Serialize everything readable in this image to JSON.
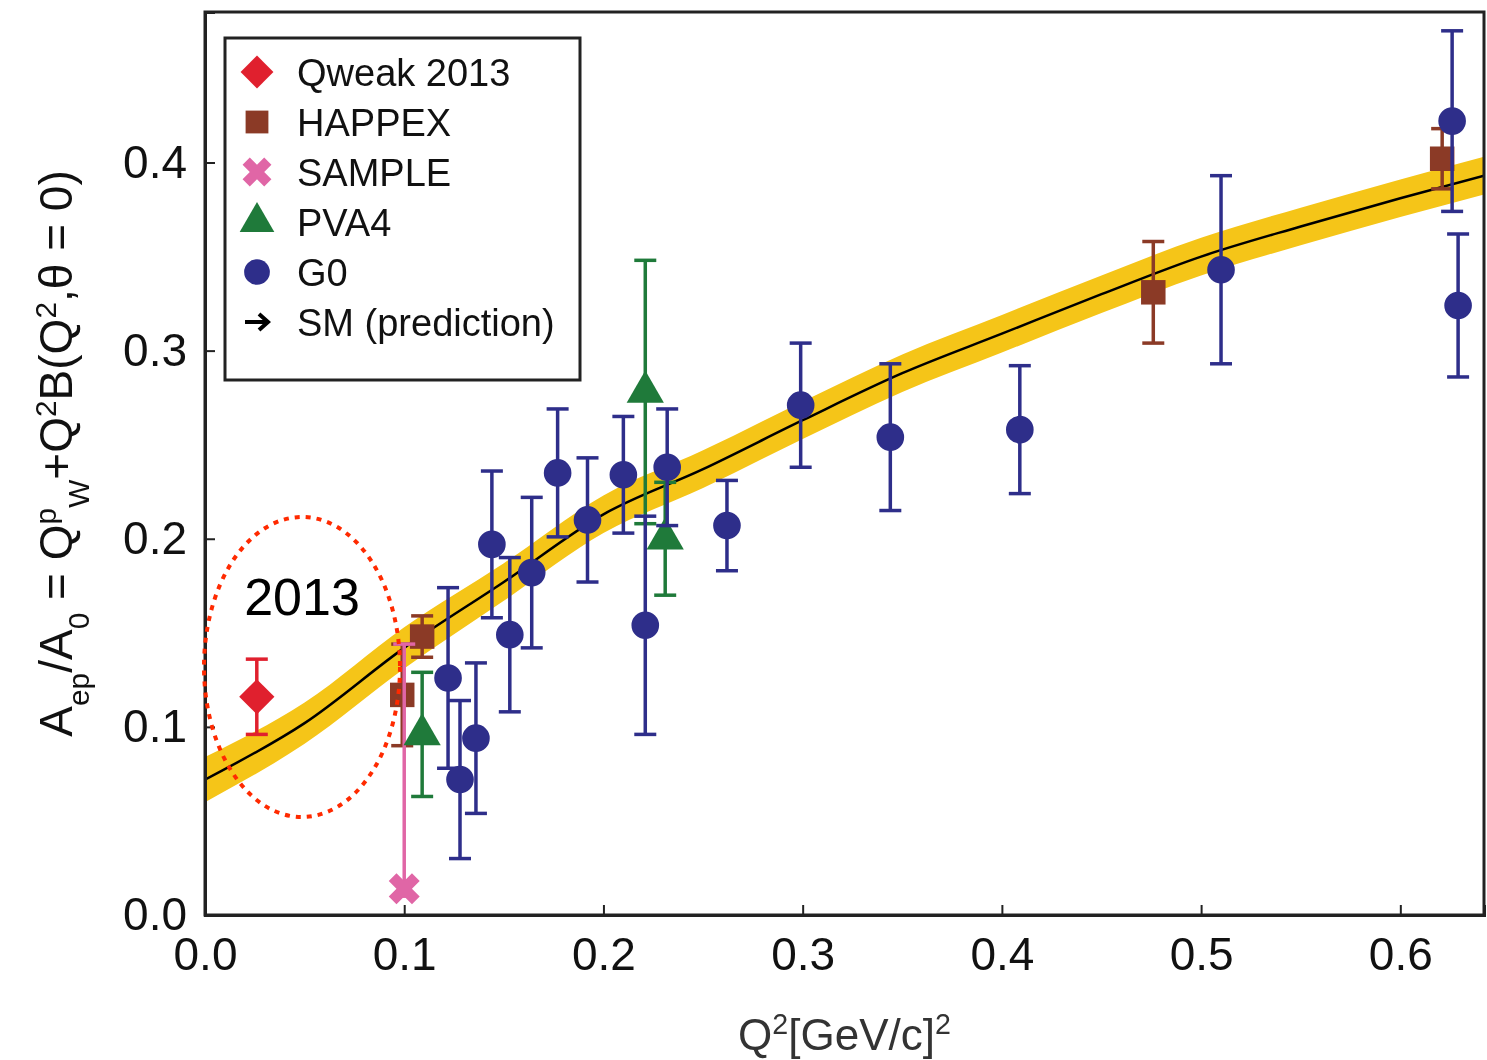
{
  "chart_data": {
    "type": "scatter",
    "xlabel": "Q$^{2}$[GeV/c]$^{2}$",
    "ylabel": "A$_{ep}$/A$_{0}$ = Q$^{p}$$_{W}$+Q$^{2}$B(Q$^{2}$,θ = 0)",
    "xlim": [
      0,
      0.642
    ],
    "ylim": [
      0,
      0.48
    ],
    "xticks": [
      {
        "value": 0,
        "label": "0.0"
      },
      0.1,
      0.2,
      0.3,
      0.4,
      0.5,
      0.6
    ],
    "yticks": [
      {
        "value": 0,
        "label": "0.0"
      },
      0.1,
      0.2,
      0.3,
      0.4
    ],
    "legend": "top left",
    "annotations": [
      "2013"
    ],
    "series": [
      {
        "name": "SM (prediction)",
        "type": "line",
        "color": "#000000",
        "marker": "none",
        "x": [
          0,
          0.05,
          0.1,
          0.15,
          0.2,
          0.25,
          0.3,
          0.35,
          0.4,
          0.45,
          0.5,
          0.55,
          0.6,
          0.642
        ],
        "values": [
          0.072,
          0.102,
          0.142,
          0.177,
          0.213,
          0.237,
          0.263,
          0.288,
          0.309,
          0.33,
          0.35,
          0.366,
          0.381,
          0.393
        ],
        "lower": [
          0.06,
          0.091,
          0.131,
          0.167,
          0.203,
          0.227,
          0.253,
          0.278,
          0.299,
          0.32,
          0.34,
          0.356,
          0.371,
          0.383
        ],
        "upper": [
          0.084,
          0.113,
          0.153,
          0.187,
          0.223,
          0.247,
          0.273,
          0.298,
          0.319,
          0.34,
          0.36,
          0.376,
          0.391,
          0.403
        ]
      },
      {
        "name": "Qweak 2013",
        "color": "#e0202e",
        "marker": "diamond",
        "x": [
          0.026
        ],
        "values": [
          0.116
        ],
        "errors": [
          0.02
        ]
      },
      {
        "name": "HAPPEX",
        "color": "#8b3a26",
        "marker": "square",
        "x": [
          0.099,
          0.109,
          0.476,
          0.621
        ],
        "values": [
          0.117,
          0.148,
          0.331,
          0.402
        ],
        "errors": [
          0.027,
          0.011,
          0.027,
          0.016
        ]
      },
      {
        "name": "SAMPLE",
        "color": "#e066a6",
        "marker": "cross",
        "x": [
          0.1
        ],
        "values": [
          0.014
        ],
        "errors": [
          [
            0.01,
            0.144
          ]
        ]
      },
      {
        "name": "PVA4",
        "color": "#1f7a3a",
        "marker": "triangle",
        "x": [
          0.109,
          0.221,
          0.231
        ],
        "values": [
          0.096,
          0.278,
          0.2
        ],
        "errors": [
          0.033,
          0.07,
          0.03
        ]
      },
      {
        "name": "G0",
        "color": "#2e2e8a",
        "marker": "circle",
        "x": [
          0.122,
          0.128,
          0.136,
          0.144,
          0.153,
          0.164,
          0.177,
          0.192,
          0.21,
          0.221,
          0.232,
          0.262,
          0.299,
          0.344,
          0.409,
          0.51,
          0.626,
          0.629
        ],
        "values": [
          0.126,
          0.072,
          0.094,
          0.197,
          0.149,
          0.182,
          0.235,
          0.21,
          0.234,
          0.154,
          0.238,
          0.207,
          0.271,
          0.254,
          0.258,
          0.343,
          0.422,
          0.324
        ],
        "errors": [
          0.048,
          0.042,
          0.04,
          0.039,
          0.041,
          0.04,
          0.034,
          0.033,
          0.031,
          0.058,
          0.031,
          0.024,
          0.033,
          0.039,
          0.034,
          0.05,
          0.048,
          0.038
        ]
      }
    ]
  }
}
